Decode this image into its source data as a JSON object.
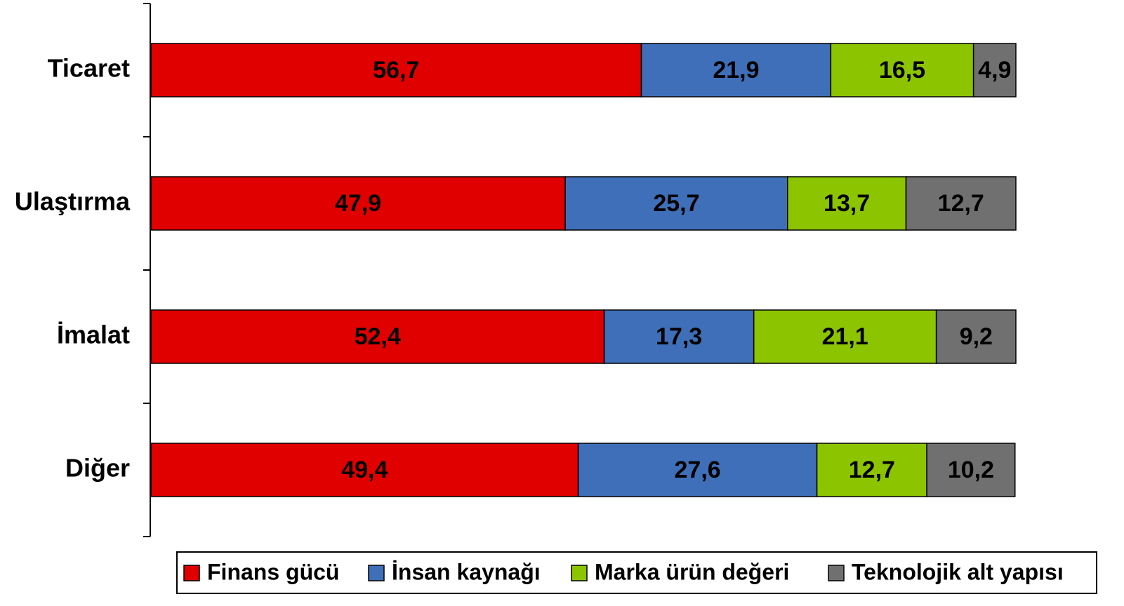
{
  "chart_data": {
    "type": "stacked-barh",
    "categories": [
      "Ticaret",
      "Ulaştırma",
      "İmalat",
      "Diğer"
    ],
    "xlim": [
      0,
      100
    ],
    "series": [
      {
        "name": "Finans gücü",
        "color": "#e00000",
        "values": [
          56.7,
          47.9,
          52.4,
          49.4
        ],
        "value_labels": [
          "56,7",
          "47,9",
          "52,4",
          "49,4"
        ]
      },
      {
        "name": "İnsan kaynağı",
        "color": "#3f6fb8",
        "values": [
          21.9,
          25.7,
          17.3,
          27.6
        ],
        "value_labels": [
          "21,9",
          "25,7",
          "17,3",
          "27,6"
        ]
      },
      {
        "name": "Marka ürün değeri",
        "color": "#8cc400",
        "values": [
          16.5,
          13.7,
          21.1,
          12.7
        ],
        "value_labels": [
          "16,5",
          "13,7",
          "21,1",
          "12,7"
        ]
      },
      {
        "name": "Teknolojik alt yapısı",
        "color": "#707070",
        "values": [
          4.9,
          12.7,
          9.2,
          10.2
        ],
        "value_labels": [
          "4,9",
          "12,7",
          "9,2",
          "10,2"
        ]
      }
    ],
    "legend": "bottom"
  }
}
